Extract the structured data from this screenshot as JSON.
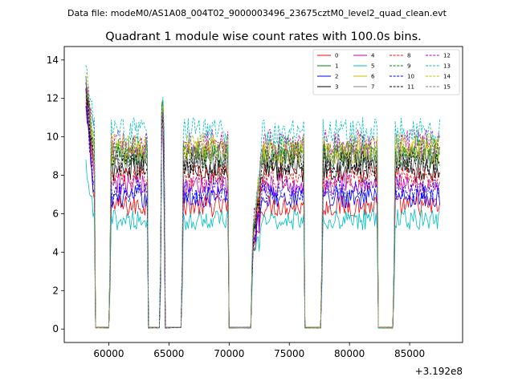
{
  "suptitle": "Data file: modeM0/AS1A08_004T02_9000003496_23675cztM0_level2_quad_clean.evt",
  "chart_data": {
    "type": "line",
    "title": "Quadrant 1 module wise count rates with 100.0s bins.",
    "xlabel": "",
    "ylabel": "",
    "x_offset_label": "+3.192e8",
    "xlim": [
      56300,
      89400
    ],
    "ylim": [
      -0.7,
      14.7
    ],
    "x_ticks": [
      60000,
      65000,
      70000,
      75000,
      80000,
      85000
    ],
    "x_tick_labels": [
      "60000",
      "65000",
      "70000",
      "75000",
      "80000",
      "85000"
    ],
    "y_ticks": [
      0,
      2,
      4,
      6,
      8,
      10,
      12,
      14
    ],
    "y_tick_labels": [
      "0",
      "2",
      "4",
      "6",
      "8",
      "10",
      "12",
      "14"
    ],
    "grid": false,
    "legend_position": "top-right",
    "bin_seconds": 100,
    "segments": [
      {
        "start": 58100,
        "end": 58800,
        "shape": "decay"
      },
      {
        "start": 60100,
        "end": 63200,
        "shape": "flat"
      },
      {
        "start": 64300,
        "end": 64600,
        "shape": "spike"
      },
      {
        "start": 66100,
        "end": 69900,
        "shape": "flat"
      },
      {
        "start": 71900,
        "end": 76200,
        "shape": "rise"
      },
      {
        "start": 77700,
        "end": 82300,
        "shape": "flat"
      },
      {
        "start": 83700,
        "end": 87500,
        "shape": "flat"
      }
    ],
    "gaps": [
      {
        "start": 58900,
        "end": 60000
      },
      {
        "start": 63300,
        "end": 64200
      },
      {
        "start": 64700,
        "end": 66000
      },
      {
        "start": 70000,
        "end": 71800
      },
      {
        "start": 76300,
        "end": 77600
      },
      {
        "start": 82400,
        "end": 83600
      }
    ],
    "series": [
      {
        "name": "0",
        "color": "#ff0000",
        "dash": "solid",
        "start_value": 12.3,
        "level": 6.4
      },
      {
        "name": "1",
        "color": "#008000",
        "dash": "solid",
        "start_value": 12.9,
        "level": 9.0
      },
      {
        "name": "2",
        "color": "#0000ff",
        "dash": "solid",
        "start_value": 11.3,
        "level": 6.9
      },
      {
        "name": "3",
        "color": "#000000",
        "dash": "solid",
        "start_value": 12.4,
        "level": 8.3
      },
      {
        "name": "4",
        "color": "#bf00bf",
        "dash": "solid",
        "start_value": 12.0,
        "level": 7.5
      },
      {
        "name": "5",
        "color": "#00bfbf",
        "dash": "solid",
        "start_value": 8.3,
        "level": 5.7
      },
      {
        "name": "6",
        "color": "#bfbf00",
        "dash": "solid",
        "start_value": 12.6,
        "level": 9.2
      },
      {
        "name": "7",
        "color": "#808080",
        "dash": "solid",
        "start_value": 12.5,
        "level": 8.8
      },
      {
        "name": "8",
        "color": "#ff0000",
        "dash": "dashed",
        "start_value": 12.2,
        "level": 7.9
      },
      {
        "name": "9",
        "color": "#008000",
        "dash": "dashed",
        "start_value": 12.8,
        "level": 9.4
      },
      {
        "name": "10",
        "color": "#0000ff",
        "dash": "dashed",
        "start_value": 11.8,
        "level": 7.2
      },
      {
        "name": "11",
        "color": "#000000",
        "dash": "dashed",
        "start_value": 12.7,
        "level": 8.6
      },
      {
        "name": "12",
        "color": "#bf00bf",
        "dash": "dashed",
        "start_value": 12.9,
        "level": 9.7
      },
      {
        "name": "13",
        "color": "#00bfbf",
        "dash": "dashed",
        "start_value": 13.7,
        "level": 10.3
      },
      {
        "name": "14",
        "color": "#bfbf00",
        "dash": "dashed",
        "start_value": 13.2,
        "level": 9.5
      },
      {
        "name": "15",
        "color": "#808080",
        "dash": "dashed",
        "start_value": 12.9,
        "level": 9.1
      }
    ]
  }
}
